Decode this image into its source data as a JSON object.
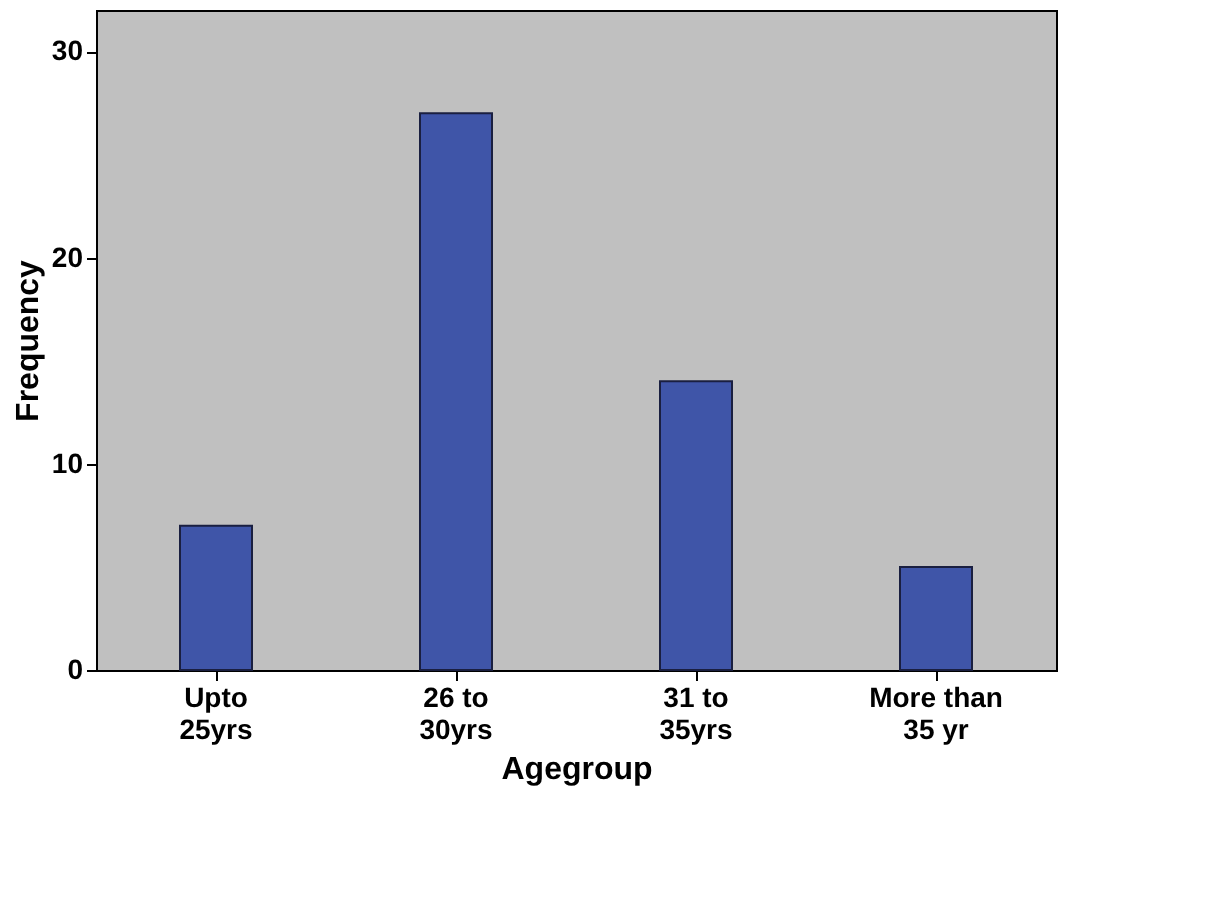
{
  "chart_data": {
    "type": "bar",
    "xlabel": "Agegroup",
    "ylabel": "Frequency",
    "categories": [
      "Upto\n25yrs",
      "26 to\n30yrs",
      "31 to\n35yrs",
      "More than\n35 yr"
    ],
    "values": [
      7,
      27,
      14,
      5
    ],
    "color": "#3f55a8",
    "ylim": [
      0,
      32
    ],
    "yticks": [
      0,
      10,
      20,
      30
    ],
    "grid": false
  }
}
